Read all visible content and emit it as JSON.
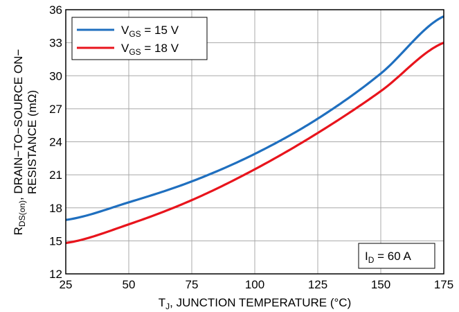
{
  "chart_data": {
    "type": "line",
    "xlabel": {
      "main": "T",
      "sub": "J",
      "rest": ", JUNCTION TEMPERATURE (°C)"
    },
    "ylabel": {
      "line2_main": "R",
      "line2_sub": "DS(on)",
      "line2_rest": ", DRAIN−TO−SOURCE ON−",
      "line1": "RESISTANCE (mΩ)"
    },
    "xlim": [
      25,
      175
    ],
    "ylim": [
      12,
      36
    ],
    "x_ticks": [
      "25",
      "50",
      "75",
      "100",
      "125",
      "150",
      "175"
    ],
    "y_ticks": [
      "12",
      "15",
      "18",
      "21",
      "24",
      "27",
      "30",
      "33",
      "36"
    ],
    "grid": true,
    "legend_position": "top-left",
    "annotation": {
      "main": "I",
      "sub": "D",
      "rest": " = 60 A"
    },
    "series": [
      {
        "name_main": "V",
        "name_sub": "GS",
        "name_rest": " = 15 V",
        "color": "#1f6fbf",
        "x": [
          25,
          50,
          75,
          100,
          125,
          150,
          175
        ],
        "y": [
          16.9,
          18.5,
          20.4,
          22.9,
          26.1,
          30.2,
          35.4
        ]
      },
      {
        "name_main": "V",
        "name_sub": "GS",
        "name_rest": " = 18 V",
        "color": "#e8141c",
        "x": [
          25,
          50,
          75,
          100,
          125,
          150,
          175
        ],
        "y": [
          14.8,
          16.5,
          18.7,
          21.5,
          24.8,
          28.6,
          33.0
        ]
      }
    ]
  }
}
